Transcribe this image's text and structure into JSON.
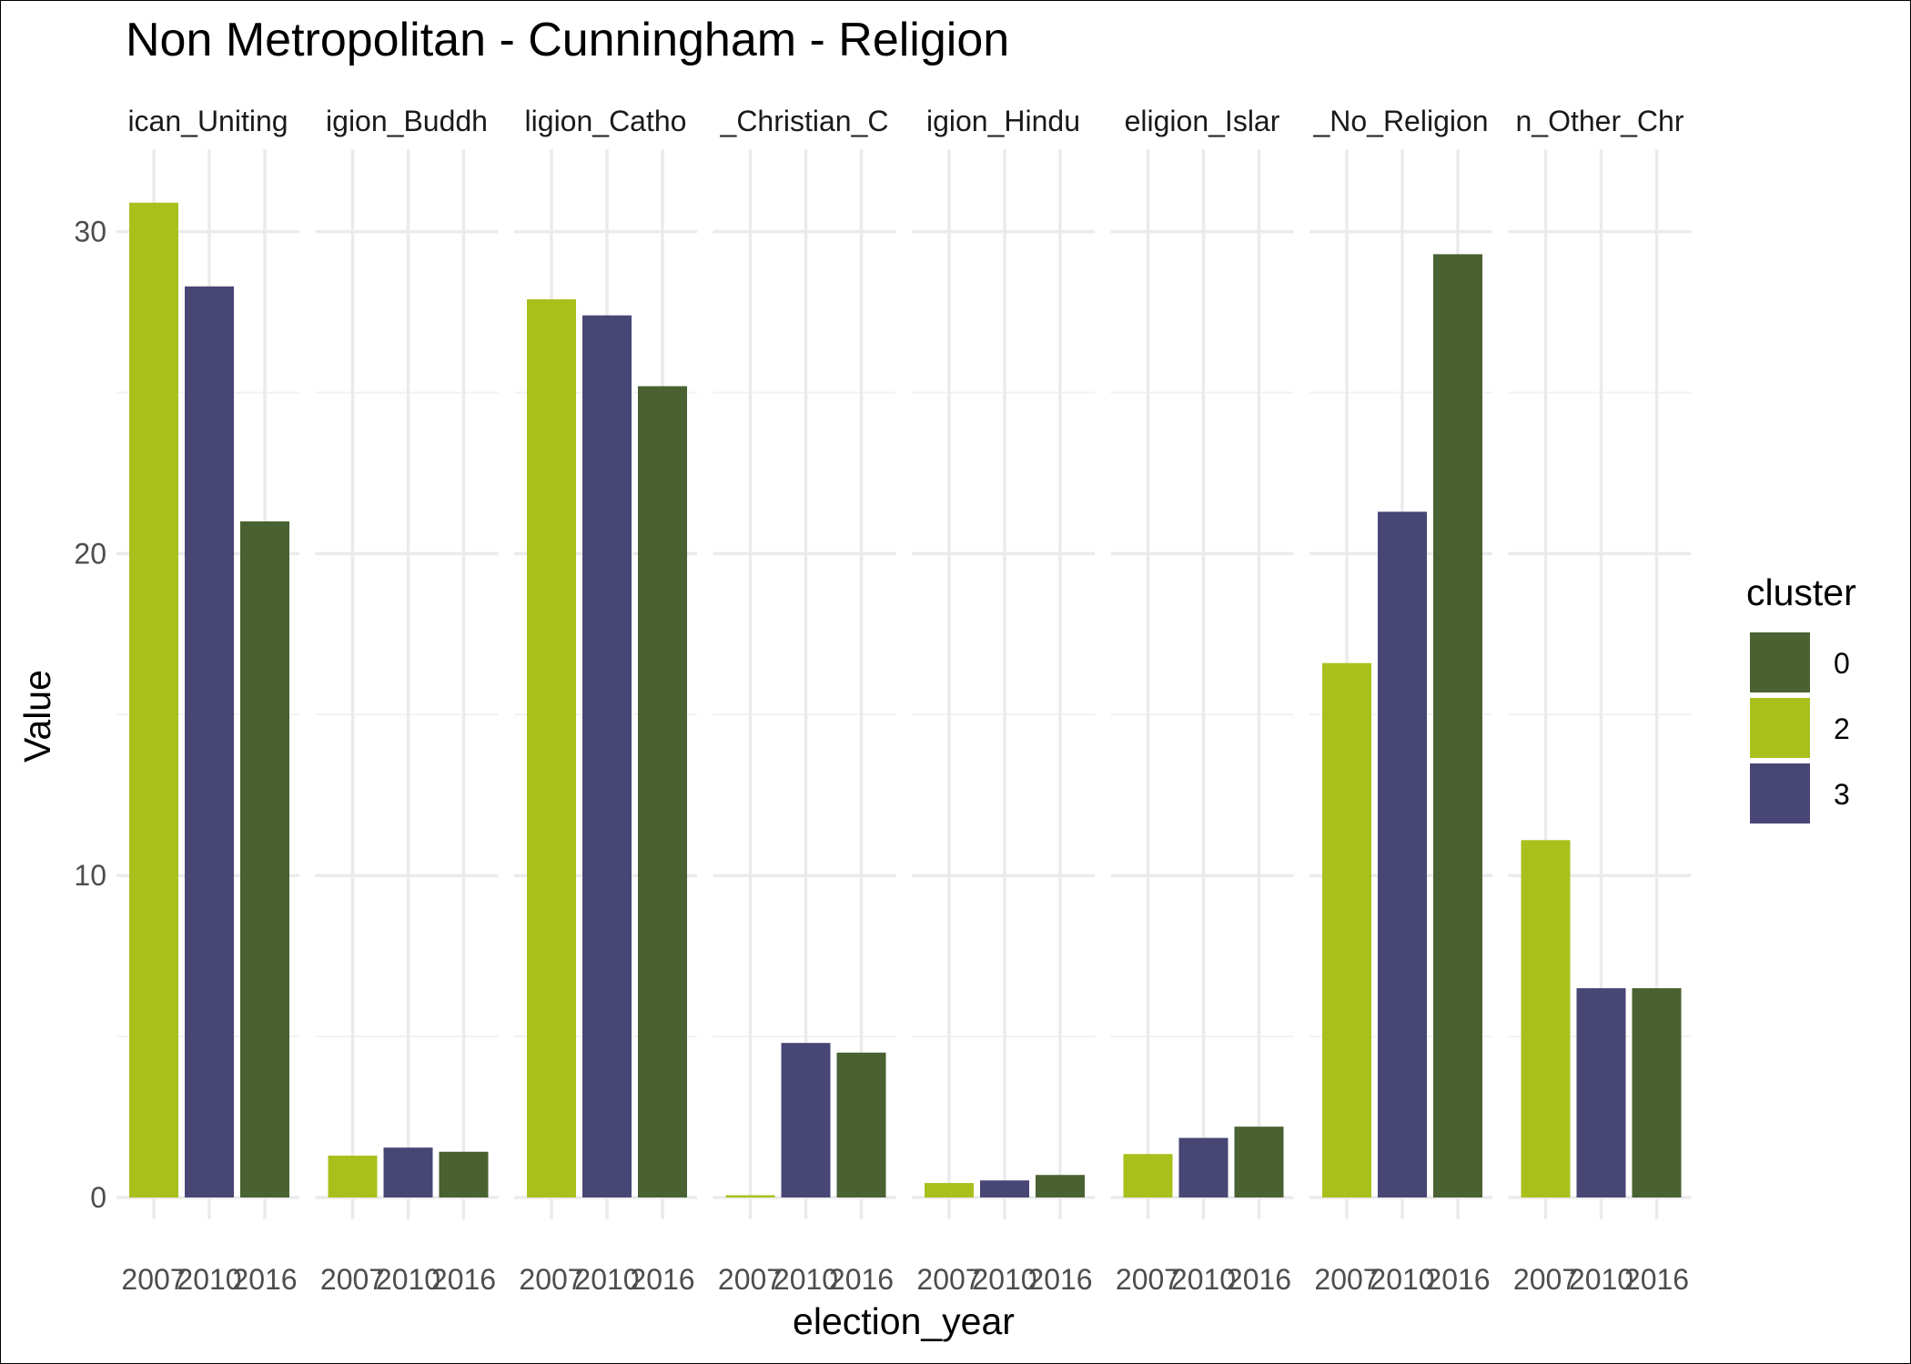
{
  "chart_data": {
    "type": "bar",
    "title": "Non Metropolitan - Cunningham - Religion",
    "xlabel": "election_year",
    "ylabel": "Value",
    "ylim": [
      0,
      32.5
    ],
    "yticks": [
      0,
      10,
      20,
      30
    ],
    "grid": true,
    "legend": {
      "title": "cluster",
      "position": "right",
      "entries": [
        {
          "label": "0",
          "color": "#4a6131"
        },
        {
          "label": "2",
          "color": "#a9c01c"
        },
        {
          "label": "3",
          "color": "#474674"
        }
      ]
    },
    "categories": [
      "2007",
      "2010",
      "2016"
    ],
    "cluster_by_year": {
      "2007": "2",
      "2010": "3",
      "2016": "0"
    },
    "panels": [
      {
        "strip": "ican_Uniting",
        "values": [
          30.9,
          28.3,
          21.0
        ]
      },
      {
        "strip": "igion_Buddh",
        "values": [
          1.3,
          1.55,
          1.42
        ]
      },
      {
        "strip": "ligion_Catho",
        "values": [
          27.9,
          27.4,
          25.2
        ]
      },
      {
        "strip": "_Christian_C",
        "values": [
          0.07,
          4.8,
          4.5
        ]
      },
      {
        "strip": "igion_Hindu",
        "values": [
          0.45,
          0.53,
          0.7
        ]
      },
      {
        "strip": "eligion_Islar",
        "values": [
          1.35,
          1.85,
          2.2
        ]
      },
      {
        "strip": "_No_Religion",
        "values": [
          16.6,
          21.3,
          29.3
        ]
      },
      {
        "strip": "n_Other_Chr",
        "values": [
          11.1,
          6.5,
          6.5
        ]
      }
    ]
  }
}
